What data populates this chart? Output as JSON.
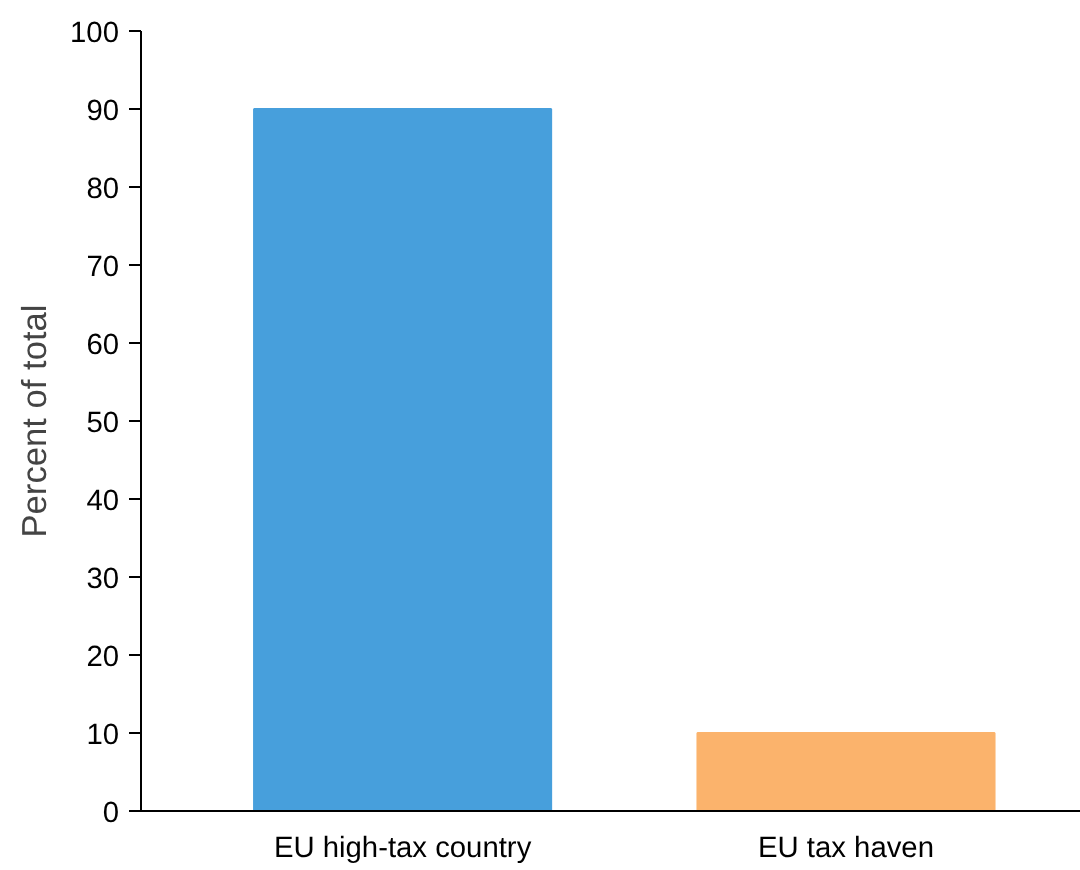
{
  "chart_data": {
    "type": "bar",
    "ylabel": "Percent of total",
    "categories": [
      "EU high-tax country",
      "EU tax haven"
    ],
    "values": [
      90,
      10
    ],
    "colors": [
      "#479fdc",
      "#fbb36c"
    ],
    "ylim": [
      0,
      100
    ],
    "yticks": [
      0,
      10,
      20,
      30,
      40,
      50,
      60,
      70,
      80,
      90,
      100
    ],
    "grid": false
  }
}
